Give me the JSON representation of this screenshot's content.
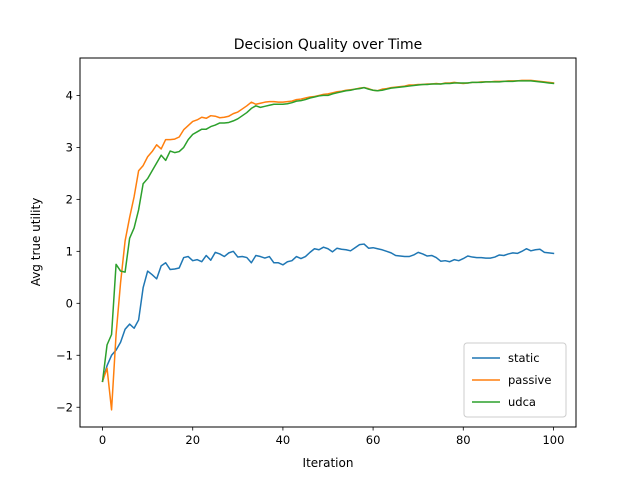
{
  "chart_data": {
    "type": "line",
    "title": "Decision Quality over Time",
    "xlabel": "Iteration",
    "ylabel": "Avg true utility",
    "xlim": [
      -5,
      105
    ],
    "ylim": [
      -2.38,
      4.72
    ],
    "xticks": [
      0,
      20,
      40,
      60,
      80,
      100
    ],
    "yticks": [
      -2,
      -1,
      0,
      1,
      2,
      3,
      4
    ],
    "ytick_labels": [
      "−2",
      "−1",
      "0",
      "1",
      "2",
      "3",
      "4"
    ],
    "grid": false,
    "legend_position": "lower-right",
    "x": [
      0,
      1,
      2,
      3,
      4,
      5,
      6,
      7,
      8,
      9,
      10,
      11,
      12,
      13,
      14,
      15,
      16,
      17,
      18,
      19,
      20,
      21,
      22,
      23,
      24,
      25,
      26,
      27,
      28,
      29,
      30,
      31,
      32,
      33,
      34,
      35,
      36,
      37,
      38,
      39,
      40,
      41,
      42,
      43,
      44,
      45,
      46,
      47,
      48,
      49,
      50,
      51,
      52,
      53,
      54,
      55,
      56,
      57,
      58,
      59,
      60,
      61,
      62,
      63,
      64,
      65,
      66,
      67,
      68,
      69,
      70,
      71,
      72,
      73,
      74,
      75,
      76,
      77,
      78,
      79,
      80,
      81,
      82,
      83,
      84,
      85,
      86,
      87,
      88,
      89,
      90,
      91,
      92,
      93,
      94,
      95,
      96,
      97,
      98,
      99,
      100
    ],
    "series": [
      {
        "name": "static",
        "color": "#1f77b4",
        "values": [
          -1.5,
          -1.2,
          -1.0,
          -0.9,
          -0.75,
          -0.5,
          -0.4,
          -0.48,
          -0.32,
          0.3,
          0.62,
          0.55,
          0.47,
          0.72,
          0.78,
          0.65,
          0.66,
          0.68,
          0.88,
          0.9,
          0.82,
          0.84,
          0.8,
          0.92,
          0.83,
          0.98,
          0.95,
          0.9,
          0.97,
          1.0,
          0.89,
          0.9,
          0.88,
          0.78,
          0.92,
          0.9,
          0.87,
          0.9,
          0.78,
          0.78,
          0.74,
          0.8,
          0.82,
          0.9,
          0.86,
          0.9,
          0.98,
          1.05,
          1.03,
          1.08,
          1.05,
          0.99,
          1.06,
          1.04,
          1.03,
          1.01,
          1.07,
          1.13,
          1.14,
          1.06,
          1.07,
          1.05,
          1.03,
          1.0,
          0.97,
          0.92,
          0.91,
          0.9,
          0.9,
          0.93,
          0.98,
          0.95,
          0.91,
          0.92,
          0.88,
          0.81,
          0.82,
          0.8,
          0.84,
          0.82,
          0.86,
          0.91,
          0.89,
          0.88,
          0.88,
          0.87,
          0.87,
          0.89,
          0.93,
          0.92,
          0.95,
          0.97,
          0.96,
          1.0,
          1.05,
          1.01,
          1.03,
          1.04,
          0.98,
          0.97,
          0.96
        ]
      },
      {
        "name": "passive",
        "color": "#ff7f0e",
        "values": [
          -1.5,
          -1.25,
          -2.05,
          -0.6,
          0.4,
          1.2,
          1.65,
          2.05,
          2.55,
          2.65,
          2.82,
          2.92,
          3.05,
          2.97,
          3.15,
          3.15,
          3.16,
          3.2,
          3.34,
          3.42,
          3.5,
          3.53,
          3.58,
          3.56,
          3.61,
          3.6,
          3.57,
          3.58,
          3.6,
          3.65,
          3.68,
          3.74,
          3.8,
          3.87,
          3.83,
          3.85,
          3.87,
          3.88,
          3.88,
          3.87,
          3.87,
          3.88,
          3.89,
          3.92,
          3.93,
          3.95,
          3.97,
          3.98,
          4.0,
          4.02,
          4.03,
          4.05,
          4.07,
          4.08,
          4.1,
          4.11,
          4.12,
          4.14,
          4.15,
          4.13,
          4.1,
          4.09,
          4.12,
          4.13,
          4.15,
          4.16,
          4.17,
          4.18,
          4.2,
          4.2,
          4.21,
          4.21,
          4.22,
          4.22,
          4.23,
          4.22,
          4.24,
          4.24,
          4.25,
          4.24,
          4.23,
          4.24,
          4.25,
          4.25,
          4.26,
          4.26,
          4.26,
          4.27,
          4.27,
          4.27,
          4.28,
          4.28,
          4.28,
          4.29,
          4.29,
          4.29,
          4.28,
          4.27,
          4.26,
          4.25,
          4.24
        ]
      },
      {
        "name": "udca",
        "color": "#2ca02c",
        "values": [
          -1.5,
          -0.8,
          -0.6,
          0.75,
          0.62,
          0.6,
          1.25,
          1.45,
          1.8,
          2.3,
          2.4,
          2.55,
          2.7,
          2.85,
          2.75,
          2.93,
          2.9,
          2.92,
          3.0,
          3.15,
          3.25,
          3.3,
          3.35,
          3.35,
          3.4,
          3.43,
          3.47,
          3.47,
          3.48,
          3.51,
          3.55,
          3.61,
          3.67,
          3.75,
          3.8,
          3.77,
          3.79,
          3.81,
          3.83,
          3.83,
          3.83,
          3.84,
          3.86,
          3.89,
          3.9,
          3.92,
          3.95,
          3.97,
          3.99,
          4.0,
          4.0,
          4.03,
          4.05,
          4.07,
          4.09,
          4.1,
          4.12,
          4.13,
          4.15,
          4.12,
          4.1,
          4.09,
          4.1,
          4.12,
          4.14,
          4.15,
          4.16,
          4.17,
          4.18,
          4.19,
          4.2,
          4.21,
          4.21,
          4.22,
          4.22,
          4.22,
          4.23,
          4.23,
          4.24,
          4.24,
          4.24,
          4.24,
          4.25,
          4.25,
          4.25,
          4.26,
          4.26,
          4.26,
          4.26,
          4.27,
          4.27,
          4.27,
          4.28,
          4.28,
          4.28,
          4.28,
          4.27,
          4.26,
          4.25,
          4.24,
          4.23
        ]
      }
    ]
  }
}
